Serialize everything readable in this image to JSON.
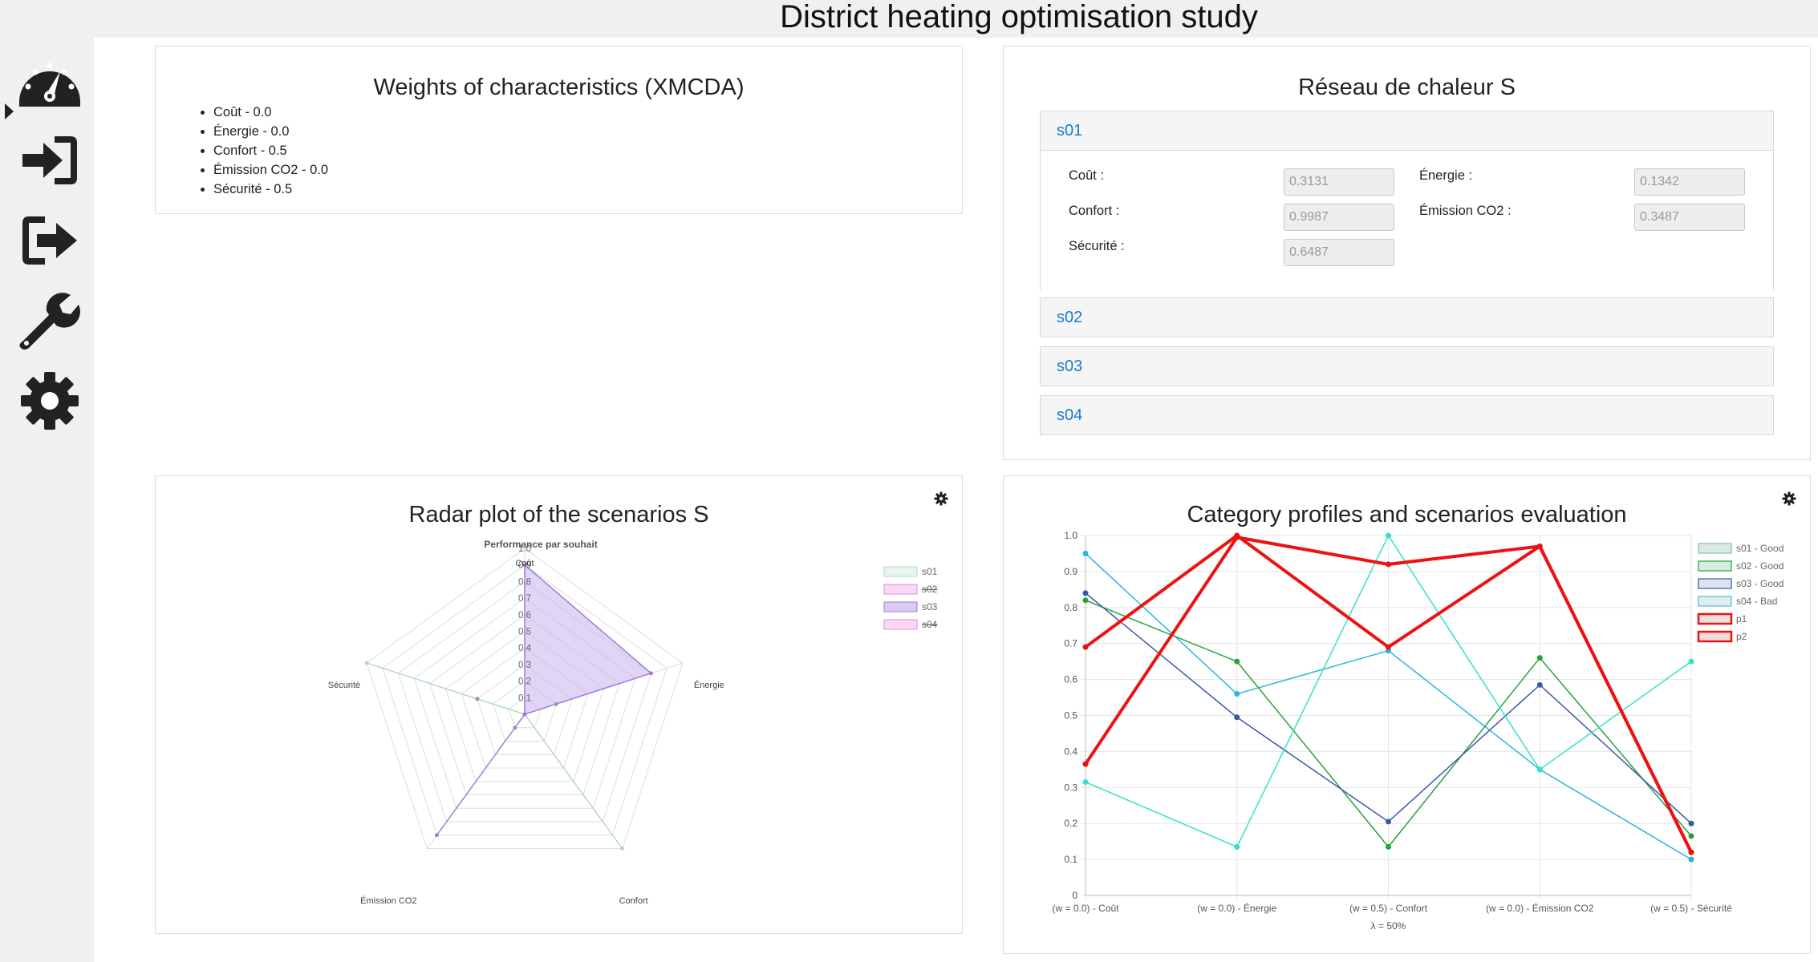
{
  "title": "District heating optimisation study",
  "sidebar": {
    "items": [
      {
        "name": "dashboard",
        "icon": "dashboard-icon",
        "active": true
      },
      {
        "name": "sign-in",
        "icon": "sign-in-icon"
      },
      {
        "name": "sign-out",
        "icon": "sign-out-icon"
      },
      {
        "name": "tools",
        "icon": "wrench-icon"
      },
      {
        "name": "settings",
        "icon": "gear-icon"
      }
    ]
  },
  "weights_panel": {
    "title": "Weights of characteristics (XMCDA)",
    "items": [
      "Coût - 0.0",
      "Énergie - 0.0",
      "Confort - 0.5",
      "Émission CO2 - 0.0",
      "Sécurité - 0.5"
    ]
  },
  "network_panel": {
    "title": "Réseau de chaleur S",
    "scenarios": [
      {
        "label": "s01",
        "expanded": true,
        "fields": [
          {
            "label": "Coût :",
            "value": "0.3131"
          },
          {
            "label": "Énergie :",
            "value": "0.1342"
          },
          {
            "label": "Confort :",
            "value": "0.9987"
          },
          {
            "label": "Émission CO2 :",
            "value": "0.3487"
          },
          {
            "label": "Sécurité :",
            "value": "0.6487"
          }
        ]
      },
      {
        "label": "s02",
        "expanded": false
      },
      {
        "label": "s03",
        "expanded": false
      },
      {
        "label": "s04",
        "expanded": false
      }
    ]
  },
  "radar_panel": {
    "title": "Radar plot of the scenarios S"
  },
  "profile_panel": {
    "title": "Category profiles and scenarios evaluation"
  },
  "chart_data": [
    {
      "type": "radar",
      "title": "Performance par souhait",
      "axes": [
        "Coût",
        "Énergie",
        "Confort",
        "Émission CO2",
        "Sécurité"
      ],
      "range": [
        0,
        1.0
      ],
      "ticks": [
        "0.1",
        "0.2",
        "0.3",
        "0.4",
        "0.5",
        "0.6",
        "0.7",
        "0.8",
        "0.9",
        "1.0"
      ],
      "legend_position": "right",
      "series": [
        {
          "name": "s01",
          "values": [
            0.0,
            0.0,
            1.0,
            0.0,
            1.0
          ],
          "color": "#dff0e6",
          "stroke": "#b5d9c4",
          "hidden": false
        },
        {
          "name": "s02",
          "color": "#f8c8f0",
          "stroke": "#e58ad8",
          "hidden": true
        },
        {
          "name": "s03",
          "values": [
            0.9,
            0.8,
            0.0,
            0.9,
            0.0
          ],
          "color": "#c9b3ec",
          "stroke": "#a07ad8",
          "hidden": false
        },
        {
          "name": "s04",
          "color": "#f8c8f0",
          "stroke": "#e58ad8",
          "hidden": true
        }
      ],
      "points": [
        {
          "axis": 3,
          "value": 0.1
        },
        {
          "axis": 4,
          "value": 0.3
        },
        {
          "axis": 1,
          "value": 0.2
        }
      ]
    },
    {
      "type": "line",
      "categories": [
        "(w = 0.0) - Coût",
        "(w = 0.0) - Énergie",
        "(w = 0.5) - Confort",
        "(w = 0.0) - Émission CO2",
        "(w = 0.5) - Sécurité"
      ],
      "xlabel": "λ = 50%",
      "ylim": [
        0,
        1.0
      ],
      "yticks": [
        "0",
        "0.1",
        "0.2",
        "0.3",
        "0.4",
        "0.5",
        "0.6",
        "0.7",
        "0.8",
        "0.9",
        "1.0"
      ],
      "legend_position": "right",
      "series": [
        {
          "name": "s01 - Good",
          "values": [
            0.95,
            0.56,
            0.68,
            0.35,
            0.1
          ],
          "color": "#29b6d8",
          "legend_fill": "#d8ece3",
          "legend_stroke": "#8dbfa4",
          "width": 1.5
        },
        {
          "name": "s02 - Good",
          "values": [
            0.82,
            0.65,
            0.135,
            0.66,
            0.165
          ],
          "color": "#27a23a",
          "legend_fill": "#d8ece3",
          "legend_stroke": "#27a23a",
          "width": 1.5
        },
        {
          "name": "s03 - Good",
          "values": [
            0.84,
            0.495,
            0.205,
            0.585,
            0.2
          ],
          "color": "#3a58a8",
          "legend_fill": "#dde3ef",
          "legend_stroke": "#3a58a8",
          "width": 1.5
        },
        {
          "name": "s04 - Bad",
          "values": [
            0.315,
            0.135,
            1.0,
            0.35,
            0.65
          ],
          "color": "#35e0c8",
          "legend_fill": "#ddeef2",
          "legend_stroke": "#5ab7cc",
          "width": 1.5
        },
        {
          "name": "p1",
          "values": [
            0.69,
            1.0,
            0.69,
            0.97,
            0.12
          ],
          "color": "#ee1111",
          "legend_fill": "#f3dede",
          "legend_stroke": "#ee1111",
          "width": 4
        },
        {
          "name": "p2",
          "values": [
            0.365,
            0.995,
            0.92,
            0.97,
            0.12
          ],
          "color": "#ee1111",
          "legend_fill": "#f3dede",
          "legend_stroke": "#ee1111",
          "width": 4
        }
      ]
    }
  ]
}
